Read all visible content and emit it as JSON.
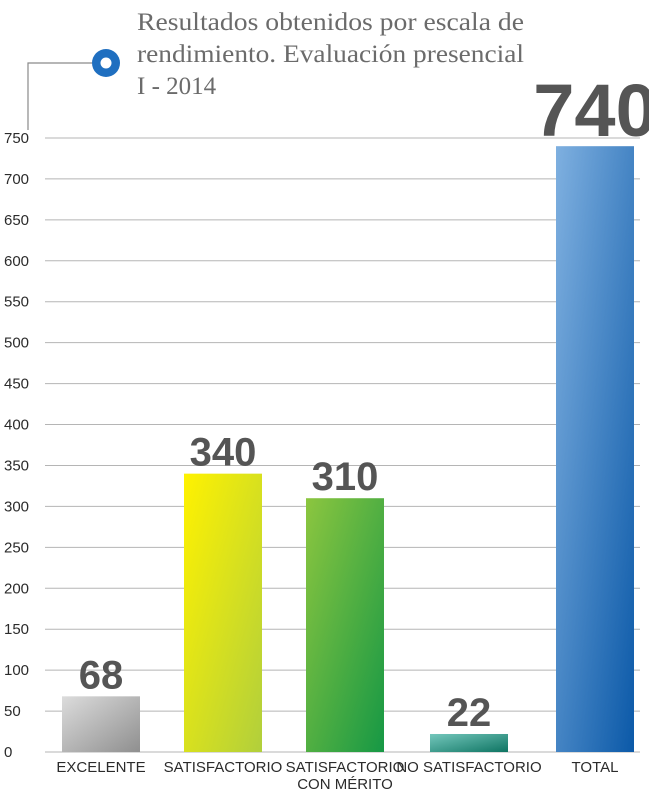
{
  "chart_data": {
    "type": "bar",
    "title_lines": [
      "Resultados obtenidos por escala de",
      "rendimiento. Evaluación presencial",
      "I - 2014"
    ],
    "categories": [
      [
        "EXCELENTE"
      ],
      [
        "SATISFACTORIO"
      ],
      [
        "SATISFACTORIO",
        "CON MÉRITO"
      ],
      [
        "NO SATISFACTORIO"
      ],
      [
        "TOTAL"
      ]
    ],
    "values": [
      68,
      340,
      310,
      22,
      740
    ],
    "value_labels": [
      "68",
      "340",
      "310",
      "22",
      "740"
    ],
    "ylim": [
      0,
      750
    ],
    "yticks": [
      0,
      50,
      100,
      150,
      200,
      250,
      300,
      350,
      400,
      450,
      500,
      550,
      600,
      650,
      700,
      750
    ],
    "grid": true,
    "colors": {
      "gridline": "#b5b5b5",
      "bar_gradients": [
        [
          "#dcdcdc",
          "#8f8f8f"
        ],
        [
          "#fff200",
          "#b1cf3c"
        ],
        [
          "#8cc63f",
          "#169845"
        ],
        [
          "#74c7bc",
          "#0e7462"
        ],
        [
          "#7fb0e0",
          "#0b59a8"
        ]
      ],
      "title_marker_outer": "#1f6fc0",
      "title_marker_inner": "#ffffff",
      "title_marker_line": "#8a8a8a"
    }
  }
}
